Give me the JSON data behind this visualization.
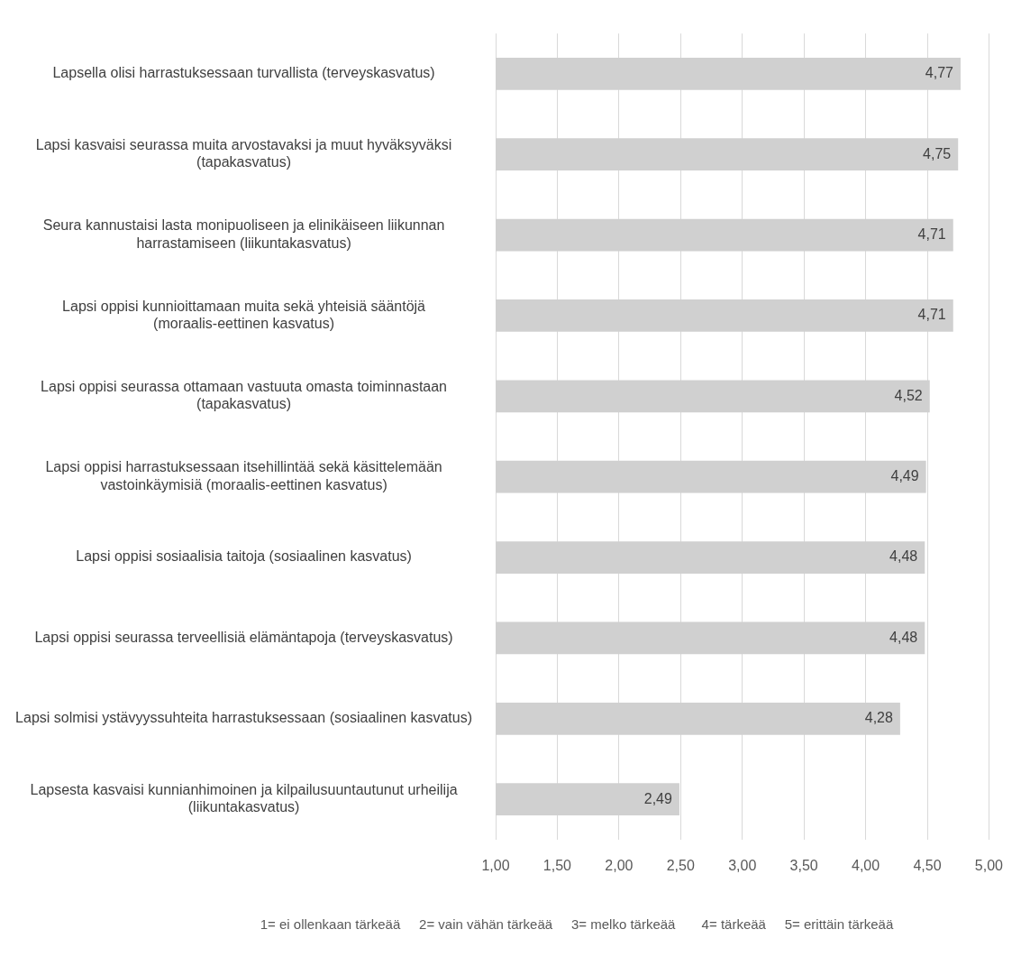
{
  "chart_data": {
    "type": "bar",
    "orientation": "horizontal",
    "categories": [
      "Lapsella olisi harrastuksessaan turvallista (terveyskasvatus)",
      "Lapsi kasvaisi seurassa muita arvostavaksi ja muut hyväksyväksi (tapakasvatus)",
      "Seura kannustaisi lasta monipuoliseen ja elinikäiseen liikunnan harrastamiseen (liikuntakasvatus)",
      "Lapsi oppisi kunnioittamaan muita sekä yhteisiä sääntöjä (moraalis-eettinen kasvatus)",
      "Lapsi oppisi seurassa ottamaan vastuuta omasta toiminnastaan (tapakasvatus)",
      "Lapsi oppisi harrastuksessaan itsehillintää sekä käsittelemään vastoinkäymisiä (moraalis-eettinen kasvatus)",
      "Lapsi oppisi sosiaalisia taitoja (sosiaalinen kasvatus)",
      "Lapsi oppisi seurassa terveellisiä elämäntapoja (terveyskasvatus)",
      "Lapsi solmisi ystävyyssuhteita harrastuksessaan (sosiaalinen kasvatus)",
      "Lapsesta kasvaisi kunnianhimoinen ja kilpailusuuntautunut urheilija (liikuntakasvatus)"
    ],
    "values": [
      4.77,
      4.75,
      4.71,
      4.71,
      4.52,
      4.49,
      4.48,
      4.48,
      4.28,
      2.49
    ],
    "value_labels": [
      "4,77",
      "4,75",
      "4,71",
      "4,71",
      "4,52",
      "4,49",
      "4,48",
      "4,48",
      "4,28",
      "2,49"
    ],
    "color": "#d0d0d0",
    "xlim": [
      1,
      5
    ],
    "xticks": [
      {
        "value": 1,
        "label": "1,00"
      },
      {
        "value": 1.5,
        "label": "1,50"
      },
      {
        "value": 2,
        "label": "2,00"
      },
      {
        "value": 2.5,
        "label": "2,50"
      },
      {
        "value": 3,
        "label": "3,00"
      },
      {
        "value": 3.5,
        "label": "3,50"
      },
      {
        "value": 4,
        "label": "4,00"
      },
      {
        "value": 4.5,
        "label": "4,50"
      },
      {
        "value": 5,
        "label": "5,00"
      }
    ],
    "grid": "x",
    "legend": false,
    "annotations": [
      "1= ei ollenkaan tärkeää     2= vain vähän tärkeää     3= melko tärkeää       4= tärkeää     5= erittäin tärkeää"
    ]
  }
}
